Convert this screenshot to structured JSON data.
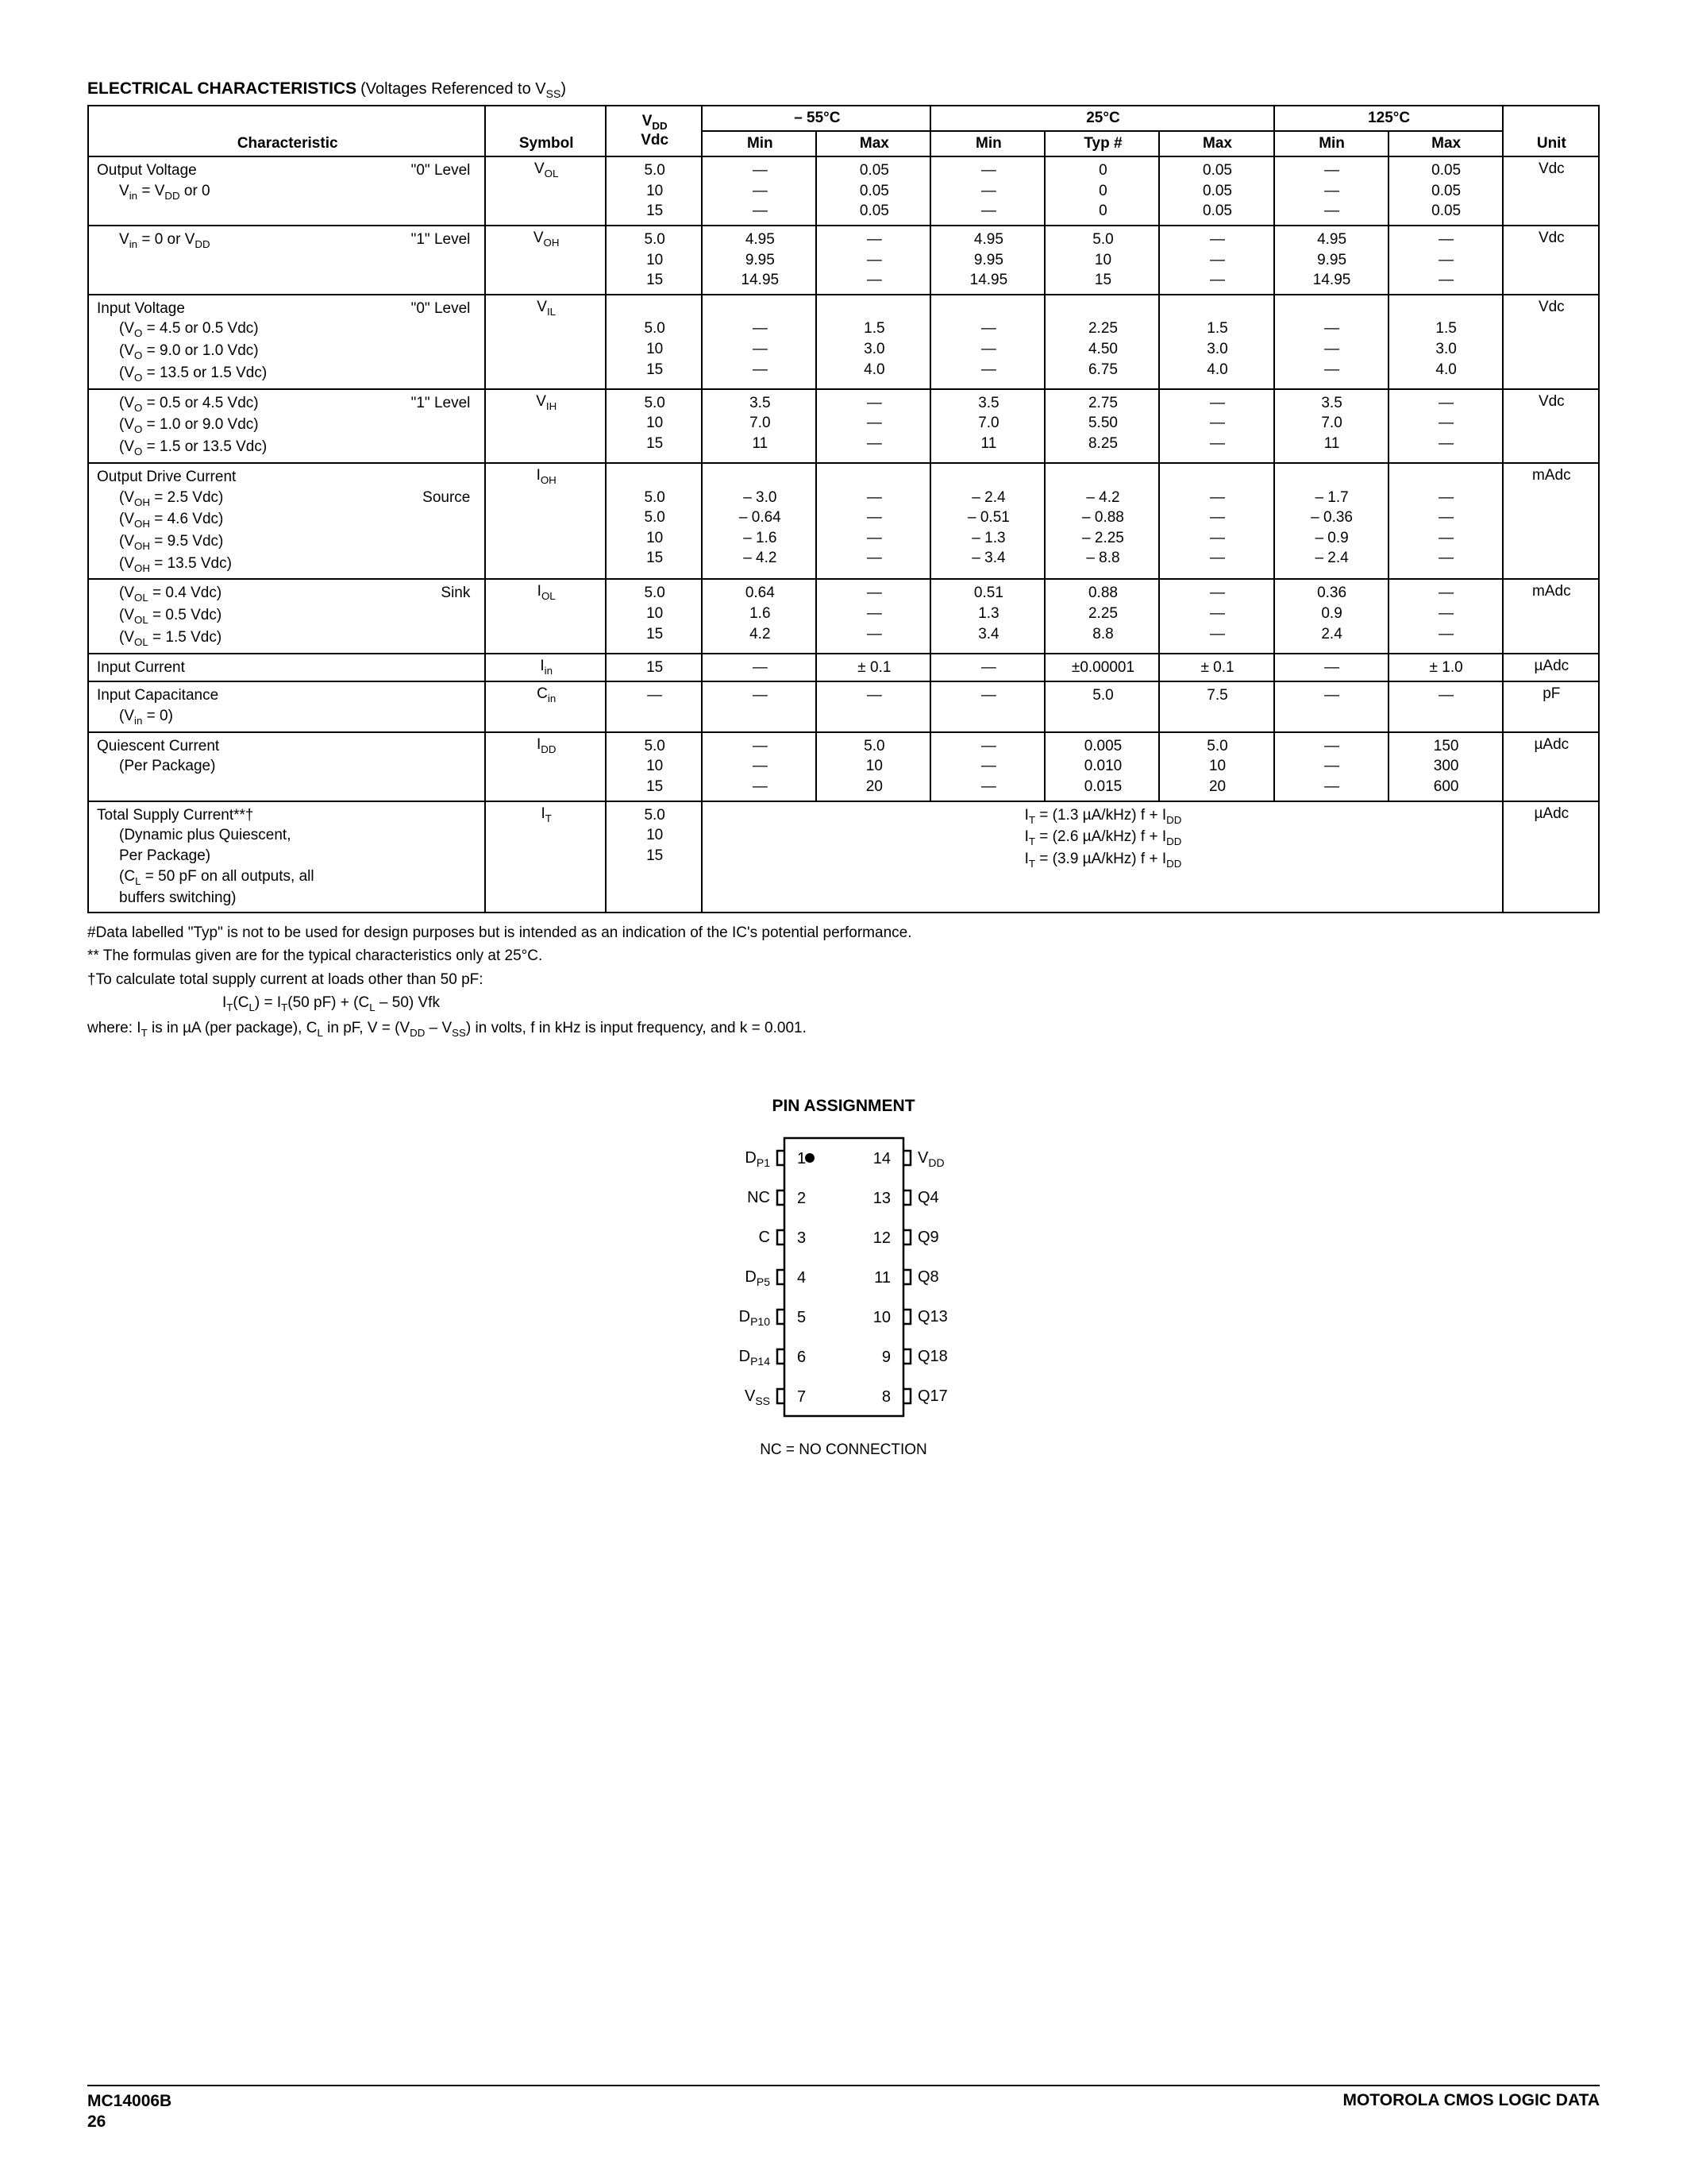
{
  "section": {
    "title": "ELECTRICAL CHARACTERISTICS",
    "subtitle_prefix": " (Voltages Referenced to V",
    "subtitle_sub": "SS",
    "subtitle_suffix": ")"
  },
  "table": {
    "head": {
      "characteristic": "Characteristic",
      "symbol": "Symbol",
      "vdd_line1": "V",
      "vdd_sub": "DD",
      "vdd_line2": "Vdc",
      "temp1": "– 55°C",
      "temp2": "25°C",
      "temp3": "125°C",
      "min": "Min",
      "max": "Max",
      "typ": "Typ #",
      "unit": "Unit"
    },
    "rows": [
      {
        "char_lines": [
          "Output Voltage<span class='level-right'>\"0\" Level</span>",
          "<span class='indent'>V<sub>in</sub> =  V<sub>DD</sub> or 0</span>"
        ],
        "symbol": "V<sub>OL</sub>",
        "vdd": [
          "5.0",
          "10",
          "15"
        ],
        "t1min": [
          "—",
          "—",
          "—"
        ],
        "t1max": [
          "0.05",
          "0.05",
          "0.05"
        ],
        "t2min": [
          "—",
          "—",
          "—"
        ],
        "t2typ": [
          "0",
          "0",
          "0"
        ],
        "t2max": [
          "0.05",
          "0.05",
          "0.05"
        ],
        "t3min": [
          "—",
          "—",
          "—"
        ],
        "t3max": [
          "0.05",
          "0.05",
          "0.05"
        ],
        "unit": "Vdc"
      },
      {
        "char_lines": [
          "<span class='indent'>V<sub>in</sub> = 0 or V<sub>DD</sub></span><span class='level-right'>\"1\" Level</span>"
        ],
        "symbol": "V<sub>OH</sub>",
        "vdd": [
          "5.0",
          "10",
          "15"
        ],
        "t1min": [
          "4.95",
          "9.95",
          "14.95"
        ],
        "t1max": [
          "—",
          "—",
          "—"
        ],
        "t2min": [
          "4.95",
          "9.95",
          "14.95"
        ],
        "t2typ": [
          "5.0",
          "10",
          "15"
        ],
        "t2max": [
          "—",
          "—",
          "—"
        ],
        "t3min": [
          "4.95",
          "9.95",
          "14.95"
        ],
        "t3max": [
          "—",
          "—",
          "—"
        ],
        "unit": "Vdc"
      },
      {
        "char_lines": [
          "Input Voltage<span class='level-right'>\"0\" Level</span>",
          "<span class='indent'>(V<sub>O</sub> = 4.5 or 0.5 Vdc)</span>",
          "<span class='indent'>(V<sub>O</sub> = 9.0 or 1.0 Vdc)</span>",
          "<span class='indent'>(V<sub>O</sub> = 13.5 or 1.5 Vdc)</span>"
        ],
        "symbol": "V<sub>IL</sub>",
        "vdd": [
          "",
          "5.0",
          "10",
          "15"
        ],
        "t1min": [
          "",
          "—",
          "—",
          "—"
        ],
        "t1max": [
          "",
          "1.5",
          "3.0",
          "4.0"
        ],
        "t2min": [
          "",
          "—",
          "—",
          "—"
        ],
        "t2typ": [
          "",
          "2.25",
          "4.50",
          "6.75"
        ],
        "t2max": [
          "",
          "1.5",
          "3.0",
          "4.0"
        ],
        "t3min": [
          "",
          "—",
          "—",
          "—"
        ],
        "t3max": [
          "",
          "1.5",
          "3.0",
          "4.0"
        ],
        "unit": "Vdc"
      },
      {
        "char_lines": [
          "<span class='indent'>(V<sub>O</sub> = 0.5 or 4.5 Vdc)</span><span class='level-right'>\"1\" Level</span>",
          "<span class='indent'>(V<sub>O</sub> = 1.0 or 9.0 Vdc)</span>",
          "<span class='indent'>(V<sub>O</sub> = 1.5 or 13.5 Vdc)</span>"
        ],
        "symbol": "V<sub>IH</sub>",
        "vdd": [
          "5.0",
          "10",
          "15"
        ],
        "t1min": [
          "3.5",
          "7.0",
          "11"
        ],
        "t1max": [
          "—",
          "—",
          "—"
        ],
        "t2min": [
          "3.5",
          "7.0",
          "11"
        ],
        "t2typ": [
          "2.75",
          "5.50",
          "8.25"
        ],
        "t2max": [
          "—",
          "—",
          "—"
        ],
        "t3min": [
          "3.5",
          "7.0",
          "11"
        ],
        "t3max": [
          "—",
          "—",
          "—"
        ],
        "unit": "Vdc"
      },
      {
        "char_lines": [
          "Output Drive Current",
          "<span class='indent'>(V<sub>OH</sub> = 2.5 Vdc)</span><span class='level-right'>Source</span>",
          "<span class='indent'>(V<sub>OH</sub> = 4.6 Vdc)</span>",
          "<span class='indent'>(V<sub>OH</sub> = 9.5 Vdc)</span>",
          "<span class='indent'>(V<sub>OH</sub> = 13.5 Vdc)</span>"
        ],
        "symbol": "I<sub>OH</sub>",
        "vdd": [
          "",
          "5.0",
          "5.0",
          "10",
          "15"
        ],
        "t1min": [
          "",
          "– 3.0",
          "– 0.64",
          "– 1.6",
          "– 4.2"
        ],
        "t1max": [
          "",
          "—",
          "—",
          "—",
          "—"
        ],
        "t2min": [
          "",
          "– 2.4",
          "– 0.51",
          "– 1.3",
          "– 3.4"
        ],
        "t2typ": [
          "",
          "– 4.2",
          "– 0.88",
          "– 2.25",
          "– 8.8"
        ],
        "t2max": [
          "",
          "—",
          "—",
          "—",
          "—"
        ],
        "t3min": [
          "",
          "– 1.7",
          "– 0.36",
          "– 0.9",
          "– 2.4"
        ],
        "t3max": [
          "",
          "—",
          "—",
          "—",
          "—"
        ],
        "unit": "mAdc"
      },
      {
        "char_lines": [
          "<span class='indent'>(V<sub>OL</sub> = 0.4 Vdc)</span><span class='level-right'>Sink</span>",
          "<span class='indent'>(V<sub>OL</sub> = 0.5 Vdc)</span>",
          "<span class='indent'>(V<sub>OL</sub> = 1.5 Vdc)</span>"
        ],
        "symbol": "I<sub>OL</sub>",
        "vdd": [
          "5.0",
          "10",
          "15"
        ],
        "t1min": [
          "0.64",
          "1.6",
          "4.2"
        ],
        "t1max": [
          "—",
          "—",
          "—"
        ],
        "t2min": [
          "0.51",
          "1.3",
          "3.4"
        ],
        "t2typ": [
          "0.88",
          "2.25",
          "8.8"
        ],
        "t2max": [
          "—",
          "—",
          "—"
        ],
        "t3min": [
          "0.36",
          "0.9",
          "2.4"
        ],
        "t3max": [
          "—",
          "—",
          "—"
        ],
        "unit": "mAdc"
      },
      {
        "char_lines": [
          "Input Current"
        ],
        "symbol": "I<sub>in</sub>",
        "vdd": [
          "15"
        ],
        "t1min": [
          "—"
        ],
        "t1max": [
          "± 0.1"
        ],
        "t2min": [
          "—"
        ],
        "t2typ": [
          "±0.00001"
        ],
        "t2max": [
          "± 0.1"
        ],
        "t3min": [
          "—"
        ],
        "t3max": [
          "± 1.0"
        ],
        "unit": "µAdc"
      },
      {
        "char_lines": [
          "Input Capacitance",
          "<span class='indent'>(V<sub>in</sub> = 0)</span>"
        ],
        "symbol": "C<sub>in</sub>",
        "vdd": [
          "—"
        ],
        "t1min": [
          "—"
        ],
        "t1max": [
          "—"
        ],
        "t2min": [
          "—"
        ],
        "t2typ": [
          "5.0"
        ],
        "t2max": [
          "7.5"
        ],
        "t3min": [
          "—"
        ],
        "t3max": [
          "—"
        ],
        "unit": "pF"
      },
      {
        "char_lines": [
          "Quiescent Current",
          "<span class='indent'>(Per Package)</span>"
        ],
        "symbol": "I<sub>DD</sub>",
        "vdd": [
          "5.0",
          "10",
          "15"
        ],
        "t1min": [
          "—",
          "—",
          "—"
        ],
        "t1max": [
          "5.0",
          "10",
          "20"
        ],
        "t2min": [
          "—",
          "—",
          "—"
        ],
        "t2typ": [
          "0.005",
          "0.010",
          "0.015"
        ],
        "t2max": [
          "5.0",
          "10",
          "20"
        ],
        "t3min": [
          "—",
          "—",
          "—"
        ],
        "t3max": [
          "150",
          "300",
          "600"
        ],
        "unit": "µAdc"
      }
    ],
    "total_row": {
      "char_lines": [
        "Total Supply Current**†",
        "<span class='indent'>(Dynamic plus Quiescent,</span>",
        "<span class='indent'>Per Package)</span>",
        "<span class='indent'>(C<sub>L</sub> = 50 pF on all outputs, all</span>",
        "<span class='indent'>buffers switching)</span>"
      ],
      "symbol": "I<sub>T</sub>",
      "vdd": [
        "5.0",
        "10",
        "15"
      ],
      "formulas": [
        "I<sub>T</sub> = (1.3 µA/kHz) f + I<sub>DD</sub>",
        "I<sub>T</sub> = (2.6 µA/kHz) f + I<sub>DD</sub>",
        "I<sub>T</sub> = (3.9 µA/kHz) f + I<sub>DD</sub>"
      ],
      "unit": "µAdc"
    }
  },
  "notes": {
    "n1": "#Data labelled \"Typ\" is not to be used for design purposes but is intended as an indication of the IC's potential performance.",
    "n2": "** The formulas given are for the typical characteristics only at 25°C.",
    "n3": "†To calculate total supply current at loads other than 50 pF:",
    "n4_pre": "I",
    "n4": "T",
    "n4_mid1": "(C",
    "n4_mid1s": "L",
    "n4_mid2": ") = I",
    "n4_mid2s": "T",
    "n4_mid3": "(50 pF) + (C",
    "n4_mid3s": "L",
    "n4_suffix": " – 50) Vfk",
    "n5_prefix": "where: I",
    "n5_s1": "T",
    "n5_a": " is in µA (per package), C",
    "n5_s2": "L",
    "n5_b": " in pF, V = (V",
    "n5_s3": "DD",
    "n5_c": " – V",
    "n5_s4": "SS",
    "n5_d": ") in volts, f in kHz is input frequency, and k = 0.001."
  },
  "pin": {
    "title": "PIN ASSIGNMENT",
    "left": [
      {
        "label": "D",
        "sub": "P1",
        "num": "1"
      },
      {
        "label": "NC",
        "sub": "",
        "num": "2"
      },
      {
        "label": "C",
        "sub": "",
        "num": "3"
      },
      {
        "label": "D",
        "sub": "P5",
        "num": "4"
      },
      {
        "label": "D",
        "sub": "P10",
        "num": "5"
      },
      {
        "label": "D",
        "sub": "P14",
        "num": "6"
      },
      {
        "label": "V",
        "sub": "SS",
        "num": "7"
      }
    ],
    "right": [
      {
        "num": "14",
        "label": "V",
        "sub": "DD"
      },
      {
        "num": "13",
        "label": "Q4",
        "sub": ""
      },
      {
        "num": "12",
        "label": "Q9",
        "sub": ""
      },
      {
        "num": "11",
        "label": "Q8",
        "sub": ""
      },
      {
        "num": "10",
        "label": "Q13",
        "sub": ""
      },
      {
        "num": "9",
        "label": "Q18",
        "sub": ""
      },
      {
        "num": "8",
        "label": "Q17",
        "sub": ""
      }
    ],
    "footer": "NC = NO CONNECTION"
  },
  "footer": {
    "part": "MC14006B",
    "page": "26",
    "right": "MOTOROLA CMOS LOGIC DATA"
  }
}
